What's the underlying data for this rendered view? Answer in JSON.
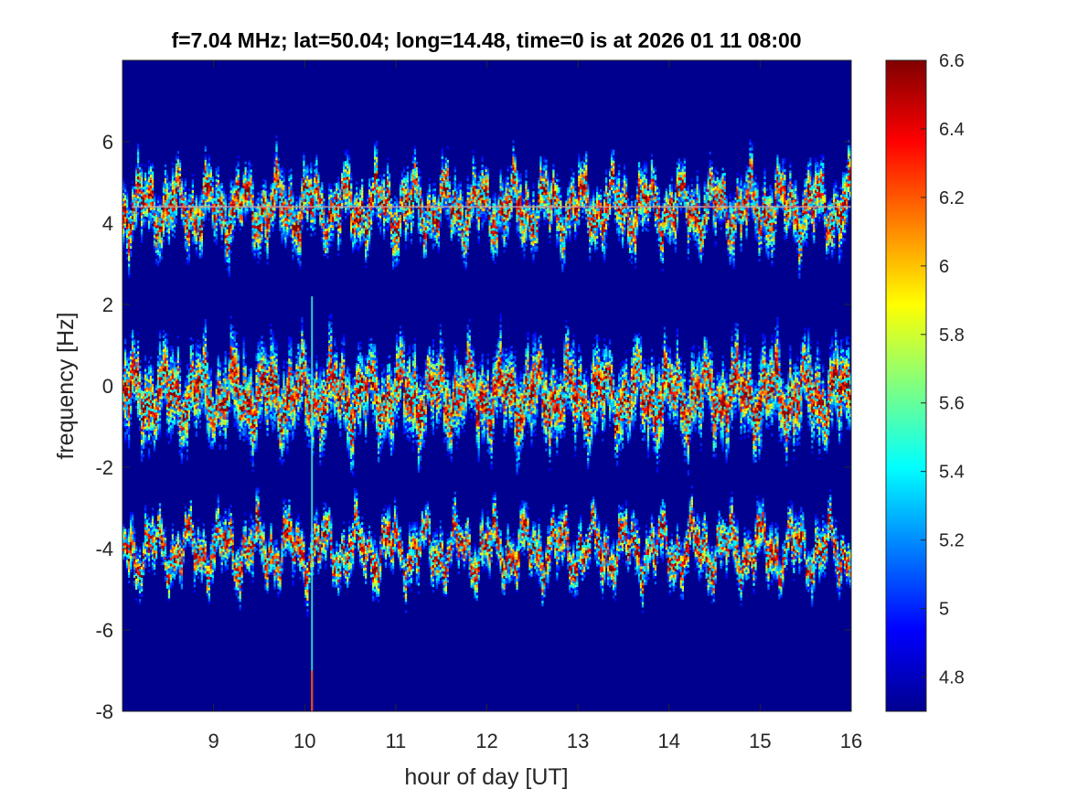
{
  "chart_data": {
    "type": "heatmap",
    "title": "f=7.04 MHz;  lat=50.04; long=14.48, time=0 is at 2026 01 11 08:00",
    "xlabel": "hour of day [UT]",
    "ylabel": "frequency [Hz]",
    "xlim": [
      8,
      16
    ],
    "ylim": [
      -8,
      8
    ],
    "x_ticks": [
      9,
      10,
      11,
      12,
      13,
      14,
      15,
      16
    ],
    "y_ticks": [
      -8,
      -6,
      -4,
      -2,
      0,
      2,
      4,
      6
    ],
    "colorbar": {
      "range": [
        4.7,
        6.6
      ],
      "ticks": [
        4.8,
        5,
        5.2,
        5.4,
        5.6,
        5.8,
        6,
        6.2,
        6.4,
        6.6
      ],
      "colormap": "jet"
    },
    "background_color": "#00008f",
    "traces": [
      {
        "name": "",
        "center_hz": 4.4,
        "spread_hz": 0.6
      },
      {
        "name": "",
        "center_hz": -0.2,
        "spread_hz": 0.8
      },
      {
        "name": "",
        "center_hz": -4.0,
        "spread_hz": 0.5
      }
    ],
    "reference_line_hz": 4.4,
    "spike_hour": 10.08,
    "grid": false,
    "legend": "none"
  }
}
